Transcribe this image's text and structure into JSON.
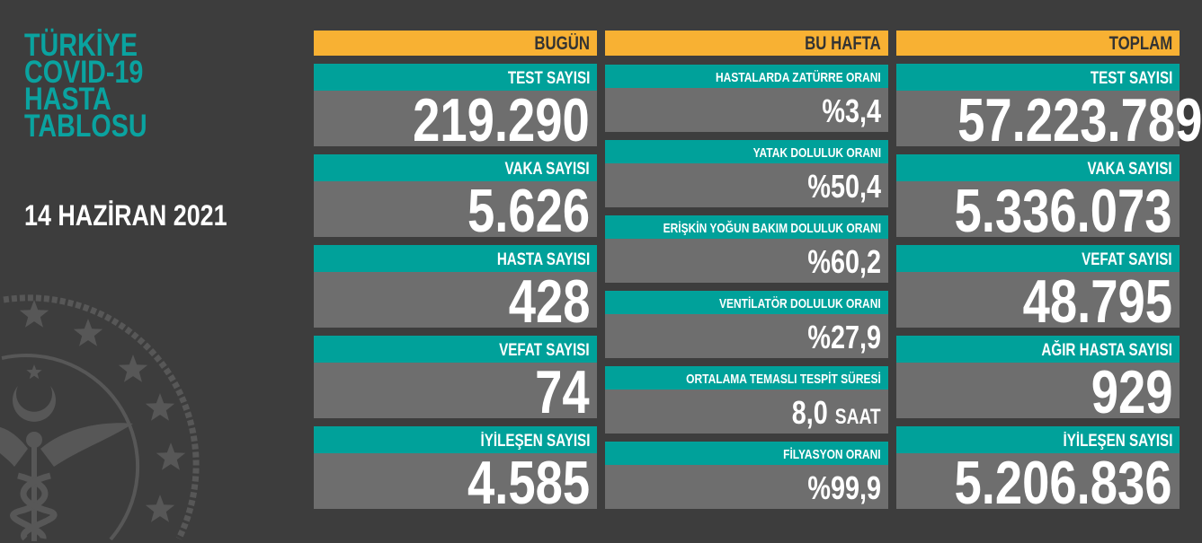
{
  "title_lines": [
    "TÜRKİYE",
    "COVID-19",
    "HASTA",
    "TABLOSU"
  ],
  "date": "14 HAZİRAN 2021",
  "colors": {
    "background": "#3d3d3d",
    "header": "#f8b133",
    "label": "#00a19a",
    "value_bg": "#6e6e6e",
    "title": "#0aa3a0"
  },
  "logo": "ministry-of-health-seal",
  "today": {
    "header": "BUGÜN",
    "items": [
      {
        "label": "TEST SAYISI",
        "value": "219.290"
      },
      {
        "label": "VAKA SAYISI",
        "value": "5.626"
      },
      {
        "label": "HASTA SAYISI",
        "value": "428"
      },
      {
        "label": "VEFAT SAYISI",
        "value": "74"
      },
      {
        "label": "İYİLEŞEN SAYISI",
        "value": "4.585"
      }
    ]
  },
  "week": {
    "header": "BU HAFTA",
    "items": [
      {
        "label": "HASTALARDA ZATÜRRE ORANI",
        "value": "%3,4",
        "unit": ""
      },
      {
        "label": "YATAK DOLULUK ORANI",
        "value": "%50,4",
        "unit": ""
      },
      {
        "label": "ERİŞKİN YOĞUN BAKIM DOLULUK ORANI",
        "value": "%60,2",
        "unit": ""
      },
      {
        "label": "VENTİLATÖR DOLULUK ORANI",
        "value": "%27,9",
        "unit": ""
      },
      {
        "label": "ORTALAMA TEMASLI TESPİT SÜRESİ",
        "value": "8,0",
        "unit": "SAAT"
      },
      {
        "label": "FİLYASYON ORANI",
        "value": "%99,9",
        "unit": ""
      }
    ]
  },
  "total": {
    "header": "TOPLAM",
    "items": [
      {
        "label": "TEST SAYISI",
        "value": "57.223.789"
      },
      {
        "label": "VAKA SAYISI",
        "value": "5.336.073"
      },
      {
        "label": "VEFAT SAYISI",
        "value": "48.795"
      },
      {
        "label": "AĞIR HASTA SAYISI",
        "value": "929"
      },
      {
        "label": "İYİLEŞEN SAYISI",
        "value": "5.206.836"
      }
    ]
  }
}
